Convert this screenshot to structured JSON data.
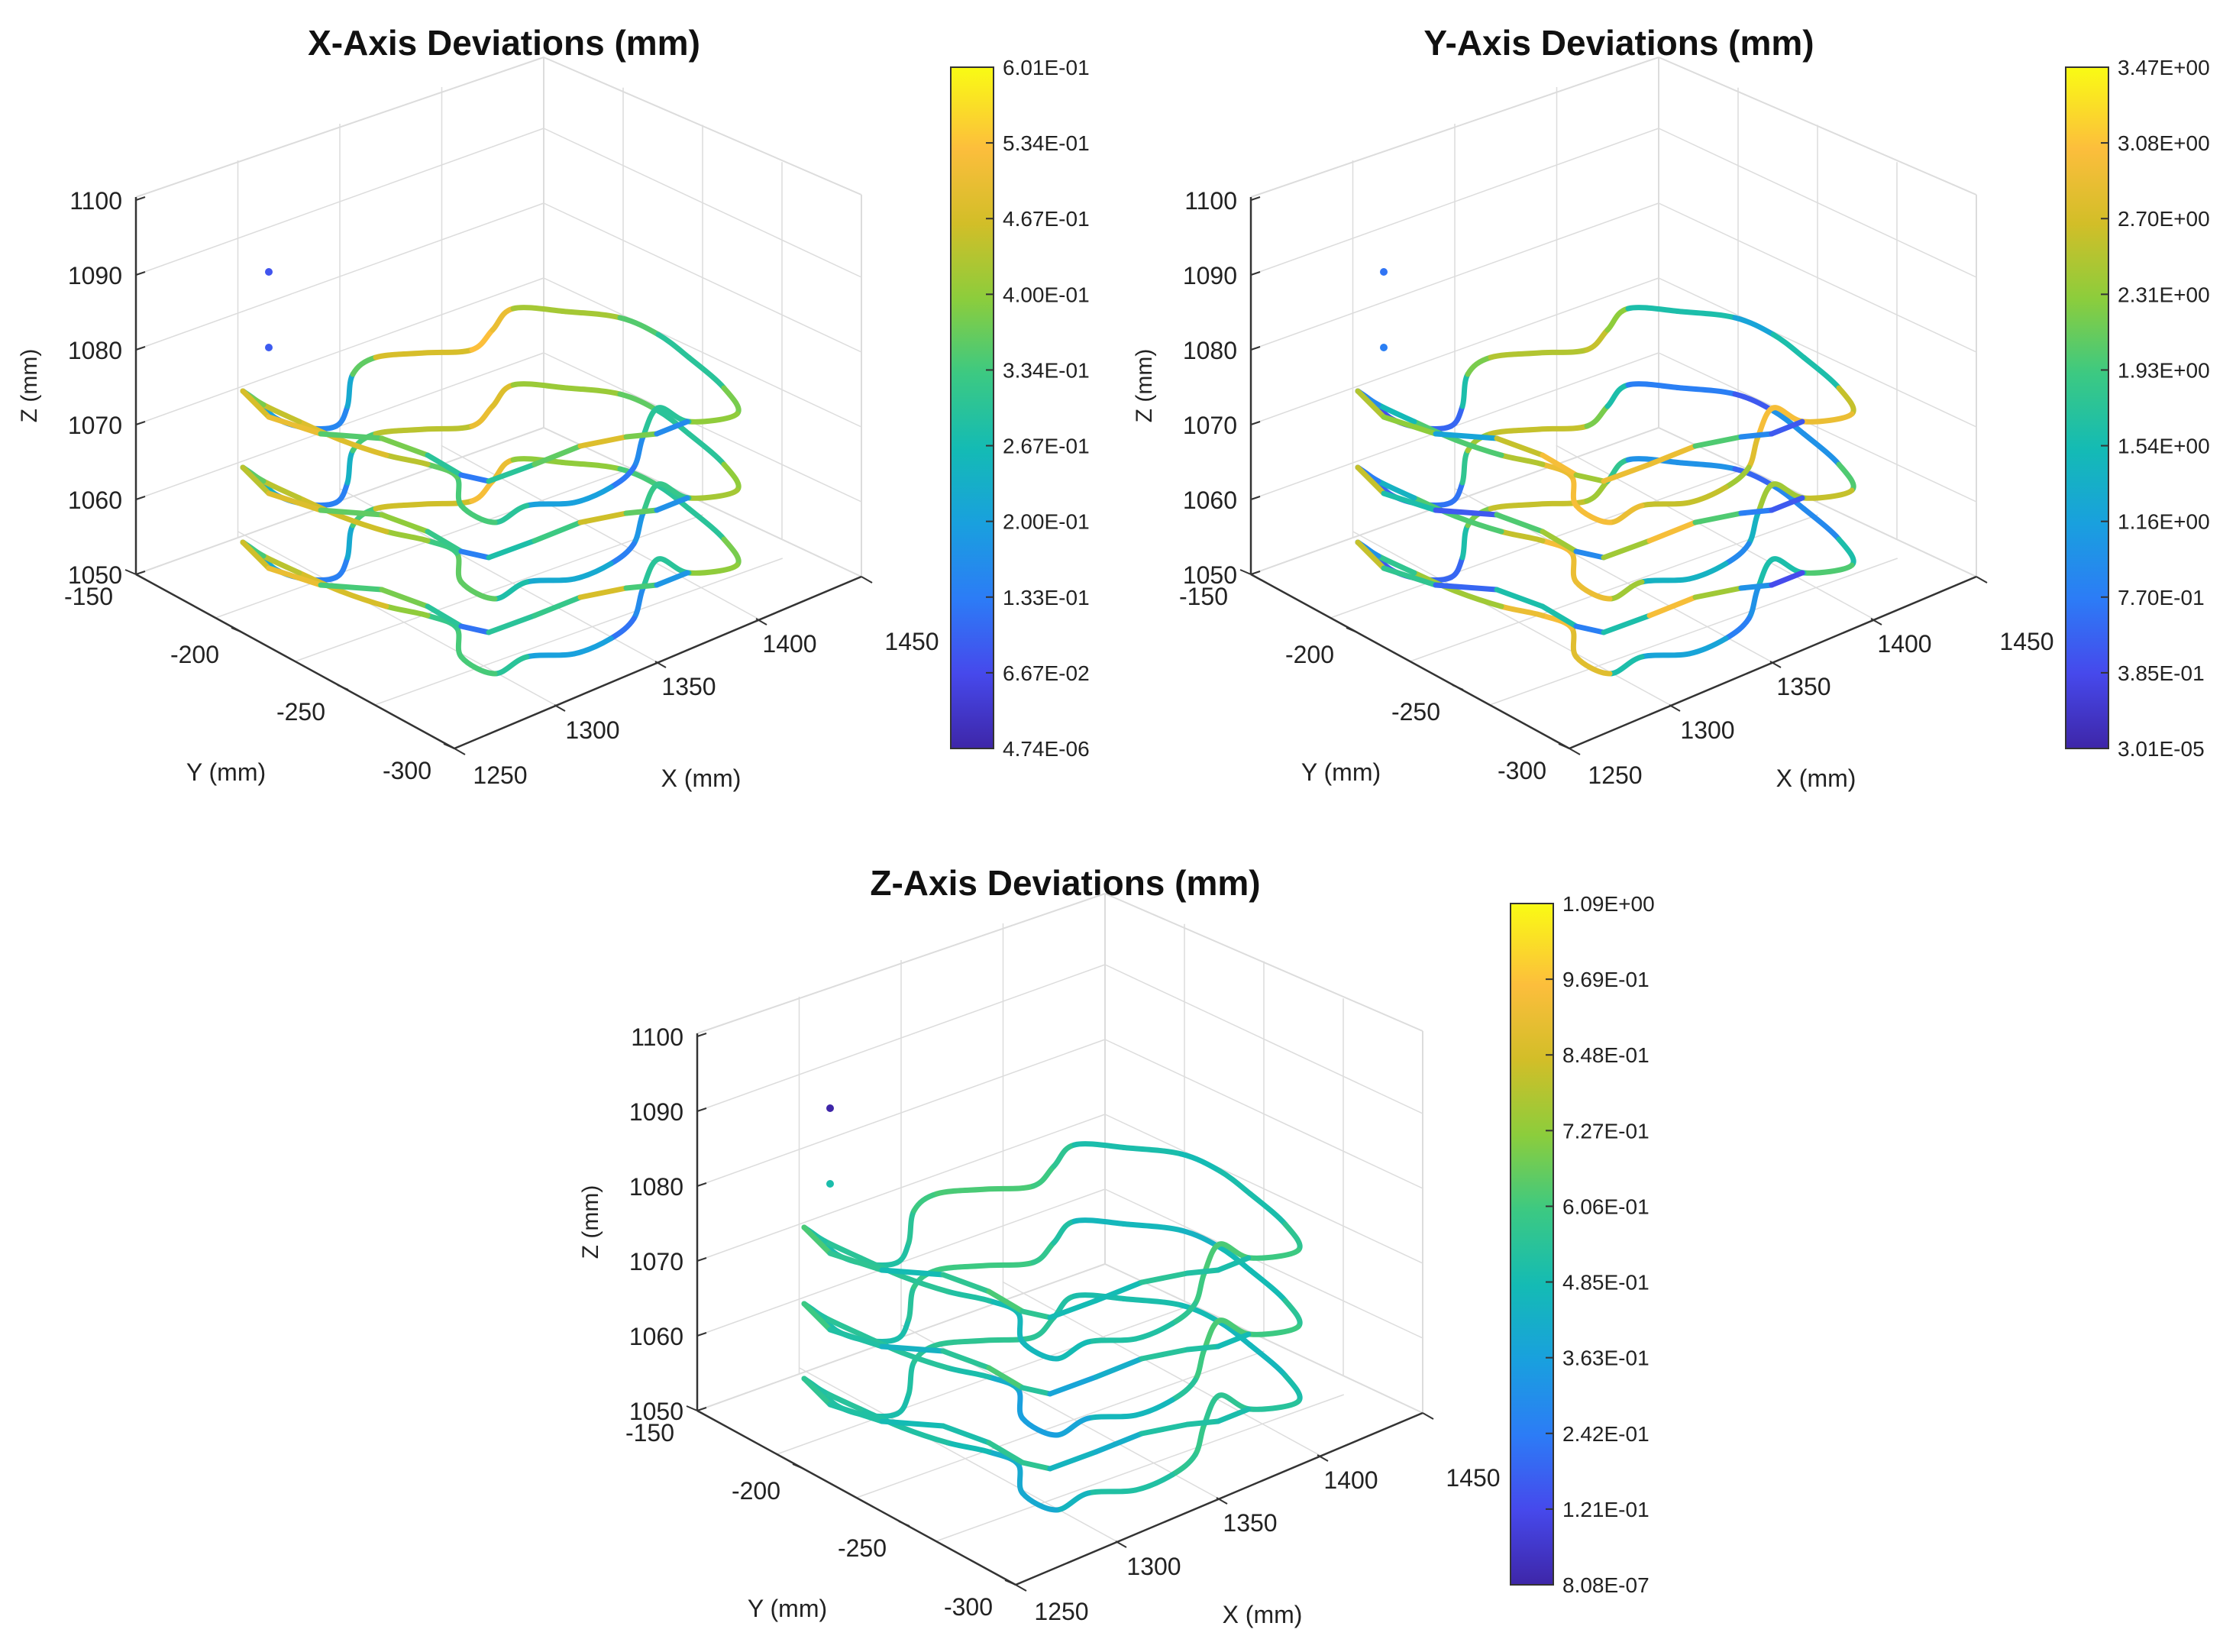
{
  "figure": {
    "description_panels": 3
  },
  "chart_data": [
    {
      "type": "scatter3d",
      "title": "X-Axis Deviations (mm)",
      "xlabel": "X (mm)",
      "ylabel": "Y (mm)",
      "zlabel": "Z (mm)",
      "xlim": [
        1250,
        1450
      ],
      "ylim": [
        -300,
        -150
      ],
      "zlim": [
        1050,
        1100
      ],
      "x_ticks": [
        "1250",
        "1300",
        "1350",
        "1400",
        "1450"
      ],
      "y_ticks": [
        "-150",
        "-200",
        "-250",
        "-300"
      ],
      "z_ticks": [
        "1050",
        "1060",
        "1070",
        "1080",
        "1090",
        "1100"
      ],
      "grid": true,
      "layers_z": [
        1055,
        1065,
        1075
      ],
      "isolated_points": [
        {
          "z": 1090,
          "value": 0.08
        },
        {
          "z": 1080,
          "value": 0.09
        }
      ],
      "colorbar": {
        "min": 4.74e-06,
        "max": 0.601,
        "ticks": [
          "4.74E-06",
          "6.67E-02",
          "1.33E-01",
          "2.00E-01",
          "2.67E-01",
          "3.34E-01",
          "4.00E-01",
          "4.67E-01",
          "5.34E-01",
          "6.01E-01"
        ]
      },
      "segment_values": [
        [
          0.22,
          0.18,
          0.14,
          0.22,
          0.34,
          0.46,
          0.52,
          0.5,
          0.4,
          0.34,
          0.3,
          0.38,
          0.4,
          0.3,
          0.16,
          0.12,
          0.2,
          0.3,
          0.34,
          0.32,
          0.4,
          0.47,
          0.44,
          0.34
        ],
        [
          0.24,
          0.17,
          0.14,
          0.24,
          0.34,
          0.44,
          0.5,
          0.48,
          0.41,
          0.36,
          0.3,
          0.4,
          0.42,
          0.32,
          0.18,
          0.14,
          0.22,
          0.28,
          0.36,
          0.33,
          0.41,
          0.46,
          0.44,
          0.36
        ],
        [
          0.2,
          0.16,
          0.15,
          0.22,
          0.36,
          0.47,
          0.53,
          0.5,
          0.42,
          0.35,
          0.3,
          0.38,
          0.4,
          0.3,
          0.16,
          0.13,
          0.2,
          0.3,
          0.34,
          0.36,
          0.44,
          0.48,
          0.45,
          0.38
        ]
      ]
    },
    {
      "type": "scatter3d",
      "title": "Y-Axis Deviations (mm)",
      "xlabel": "X (mm)",
      "ylabel": "Y (mm)",
      "zlabel": "Z (mm)",
      "xlim": [
        1250,
        1450
      ],
      "ylim": [
        -300,
        -150
      ],
      "zlim": [
        1050,
        1100
      ],
      "x_ticks": [
        "1250",
        "1300",
        "1350",
        "1400",
        "1450"
      ],
      "y_ticks": [
        "-150",
        "-200",
        "-250",
        "-300"
      ],
      "z_ticks": [
        "1050",
        "1060",
        "1070",
        "1080",
        "1090",
        "1100"
      ],
      "grid": true,
      "layers_z": [
        1055,
        1065,
        1075
      ],
      "isolated_points": [
        {
          "z": 1090,
          "value": 0.7
        },
        {
          "z": 1080,
          "value": 0.8
        }
      ],
      "colorbar": {
        "min": 3.01e-05,
        "max": 3.47,
        "ticks": [
          "3.01E-05",
          "3.85E-01",
          "7.70E-01",
          "1.16E+00",
          "1.54E+00",
          "1.93E+00",
          "2.31E+00",
          "2.70E+00",
          "3.08E+00",
          "3.47E+00"
        ]
      },
      "segment_values": [
        [
          0.5,
          0.4,
          0.6,
          1.6,
          2.2,
          2.6,
          2.4,
          1.8,
          1.0,
          0.6,
          0.9,
          1.6,
          2.0,
          1.6,
          1.0,
          0.8,
          1.2,
          1.6,
          2.8,
          3.0,
          2.9,
          2.4,
          1.8,
          1.0
        ],
        [
          0.6,
          0.5,
          0.7,
          1.8,
          2.4,
          2.6,
          2.2,
          1.6,
          0.8,
          0.5,
          1.0,
          2.0,
          2.6,
          2.4,
          1.4,
          0.9,
          1.4,
          2.4,
          2.9,
          3.0,
          2.6,
          2.0,
          1.4,
          0.8
        ],
        [
          0.4,
          0.5,
          0.6,
          1.6,
          2.2,
          2.5,
          2.6,
          2.3,
          1.6,
          1.2,
          1.6,
          2.6,
          2.9,
          3.0,
          2.8,
          2.4,
          2.6,
          2.9,
          3.0,
          2.9,
          2.5,
          2.0,
          1.5,
          0.9
        ]
      ]
    },
    {
      "type": "scatter3d",
      "title": "Z-Axis Deviations (mm)",
      "xlabel": "X (mm)",
      "ylabel": "Y (mm)",
      "zlabel": "Z (mm)",
      "xlim": [
        1250,
        1450
      ],
      "ylim": [
        -300,
        -150
      ],
      "zlim": [
        1050,
        1100
      ],
      "x_ticks": [
        "1250",
        "1300",
        "1350",
        "1400",
        "1450"
      ],
      "y_ticks": [
        "-150",
        "-200",
        "-250",
        "-300"
      ],
      "z_ticks": [
        "1050",
        "1060",
        "1070",
        "1080",
        "1090",
        "1100"
      ],
      "grid": true,
      "layers_z": [
        1055,
        1065,
        1075
      ],
      "isolated_points": [
        {
          "z": 1090,
          "value": 0.0
        },
        {
          "z": 1080,
          "value": 0.5
        }
      ],
      "colorbar": {
        "min": 8.08e-07,
        "max": 1.09,
        "ticks": [
          "8.08E-07",
          "1.21E-01",
          "2.42E-01",
          "3.63E-01",
          "4.85E-01",
          "6.06E-01",
          "7.27E-01",
          "8.48E-01",
          "9.69E-01",
          "1.09E+00"
        ]
      },
      "segment_values": [
        [
          0.52,
          0.5,
          0.5,
          0.52,
          0.55,
          0.56,
          0.55,
          0.52,
          0.5,
          0.48,
          0.46,
          0.5,
          0.54,
          0.56,
          0.58,
          0.56,
          0.52,
          0.45,
          0.4,
          0.42,
          0.48,
          0.52,
          0.54,
          0.52
        ],
        [
          0.5,
          0.48,
          0.5,
          0.54,
          0.58,
          0.6,
          0.57,
          0.52,
          0.46,
          0.44,
          0.48,
          0.55,
          0.6,
          0.62,
          0.6,
          0.54,
          0.46,
          0.38,
          0.36,
          0.42,
          0.5,
          0.54,
          0.55,
          0.52
        ],
        [
          0.5,
          0.5,
          0.52,
          0.55,
          0.6,
          0.62,
          0.6,
          0.56,
          0.5,
          0.48,
          0.5,
          0.56,
          0.6,
          0.62,
          0.6,
          0.56,
          0.52,
          0.48,
          0.46,
          0.48,
          0.52,
          0.55,
          0.55,
          0.52
        ]
      ]
    }
  ]
}
